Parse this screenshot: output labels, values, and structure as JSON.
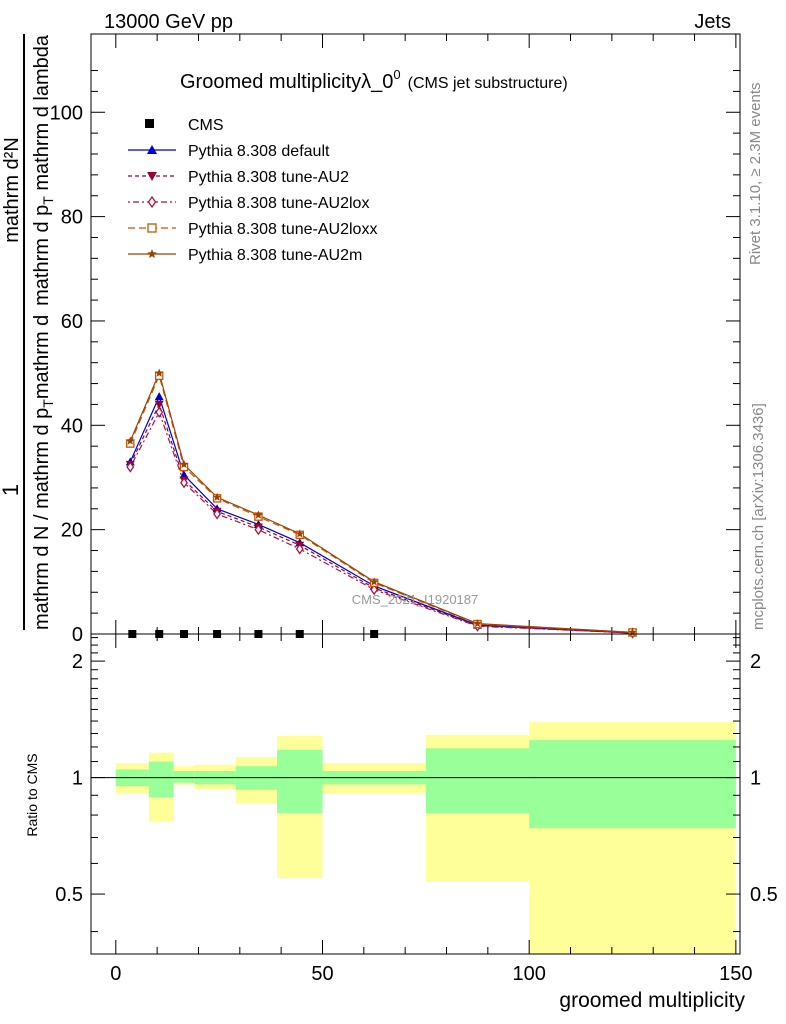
{
  "header": {
    "left": "13000 GeV pp",
    "right": "Jets"
  },
  "side_labels": {
    "top": "Rivet 3.1.10, ≥ 2.3M events",
    "bottom": "mcplots.cern.ch [arXiv:1306.3436]"
  },
  "chart_data": [
    {
      "type": "line",
      "title": "Groomed multiplicityλ_0",
      "title_sup": "0",
      "title_suffix": "(CMS jet substructure)",
      "watermark": "CMS_2021_I1920187",
      "ylabel_numerator": "1",
      "ylabel_denominator": "mathrm d N / mathrm d p_T mathrm d p_T mathrm d lambda",
      "ylabel_derivative": "mathrm d²N",
      "ylim": [
        0,
        115
      ],
      "xlim": [
        -6,
        151
      ],
      "yticks": [
        0,
        20,
        40,
        60,
        80,
        100
      ],
      "legend_position": "top-left",
      "data_series": {
        "name": "CMS",
        "x": [
          4,
          10.5,
          16.5,
          24.5,
          34.5,
          44.5,
          62.5
        ],
        "y": [
          0,
          0,
          0,
          0,
          0,
          0,
          0
        ]
      },
      "series": [
        {
          "name": "Pythia 8.308 default",
          "color": "#0000cc",
          "marker": "triangle-up",
          "dash": "",
          "x": [
            3.5,
            10.5,
            16.5,
            24.5,
            34.5,
            44.5,
            62.5,
            87.5,
            125
          ],
          "y": [
            33,
            45.5,
            30.5,
            24,
            21,
            17.5,
            9.2,
            1.7,
            0.2
          ]
        },
        {
          "name": "Pythia 8.308 tune-AU2",
          "color": "#990033",
          "marker": "triangle-down",
          "dash": "4,3",
          "x": [
            3.5,
            10.5,
            16.5,
            24.5,
            34.5,
            44.5,
            62.5,
            87.5,
            125
          ],
          "y": [
            32.5,
            44,
            29.5,
            23.5,
            20.5,
            17,
            8.8,
            1.6,
            0.2
          ]
        },
        {
          "name": "Pythia 8.308 tune-AU2lox",
          "color": "#aa1144",
          "marker": "diamond",
          "dash": "2,3,6,3",
          "x": [
            3.5,
            10.5,
            16.5,
            24.5,
            34.5,
            44.5,
            62.5,
            87.5,
            125
          ],
          "y": [
            32,
            42.5,
            29,
            23,
            20,
            16.3,
            8.5,
            1.5,
            0.2
          ]
        },
        {
          "name": "Pythia 8.308 tune-AU2loxx",
          "color": "#cc5500",
          "marker": "square",
          "dash": "7,4",
          "x": [
            3.5,
            10.5,
            16.5,
            24.5,
            34.5,
            44.5,
            62.5,
            87.5,
            125
          ],
          "y": [
            36.5,
            49.5,
            32,
            26,
            22.5,
            19,
            9.8,
            1.9,
            0.3
          ]
        },
        {
          "name": "Pythia 8.308 tune-AU2m",
          "color": "#994400",
          "marker": "star",
          "dash": "",
          "x": [
            3.5,
            10.5,
            16.5,
            24.5,
            34.5,
            44.5,
            62.5,
            87.5,
            125
          ],
          "y": [
            37,
            50,
            32.5,
            26.2,
            22.8,
            19.2,
            10,
            2,
            0.3
          ]
        }
      ]
    },
    {
      "type": "area",
      "ylabel": "Ratio to CMS",
      "xlabel": "groomed multiplicity",
      "ylim": [
        0.35,
        2.35
      ],
      "xlim": [
        -6,
        151
      ],
      "yticks": [
        0.5,
        1,
        2
      ],
      "xticks": [
        0,
        50,
        100,
        150
      ],
      "reference_line": 1,
      "band_colors": {
        "outer": "#ffff99",
        "inner": "#99ff99"
      },
      "bins": [
        {
          "lo": 0,
          "hi": 8,
          "inner": [
            0.95,
            1.05
          ],
          "outer": [
            0.91,
            1.09
          ]
        },
        {
          "lo": 8,
          "hi": 14,
          "inner": [
            0.89,
            1.1
          ],
          "outer": [
            0.77,
            1.16
          ]
        },
        {
          "lo": 14,
          "hi": 19,
          "inner": [
            0.97,
            1.04
          ],
          "outer": [
            0.96,
            1.07
          ]
        },
        {
          "lo": 19,
          "hi": 29,
          "inner": [
            0.96,
            1.04
          ],
          "outer": [
            0.93,
            1.08
          ]
        },
        {
          "lo": 29,
          "hi": 39,
          "inner": [
            0.93,
            1.07
          ],
          "outer": [
            0.86,
            1.13
          ]
        },
        {
          "lo": 39,
          "hi": 50,
          "inner": [
            0.81,
            1.18
          ],
          "outer": [
            0.55,
            1.28
          ]
        },
        {
          "lo": 50,
          "hi": 75,
          "inner": [
            0.96,
            1.04
          ],
          "outer": [
            0.91,
            1.09
          ]
        },
        {
          "lo": 75,
          "hi": 100,
          "inner": [
            0.81,
            1.19
          ],
          "outer": [
            0.54,
            1.29
          ]
        },
        {
          "lo": 100,
          "hi": 150,
          "inner": [
            0.74,
            1.25
          ],
          "outer": [
            0.35,
            1.39
          ]
        }
      ]
    }
  ]
}
